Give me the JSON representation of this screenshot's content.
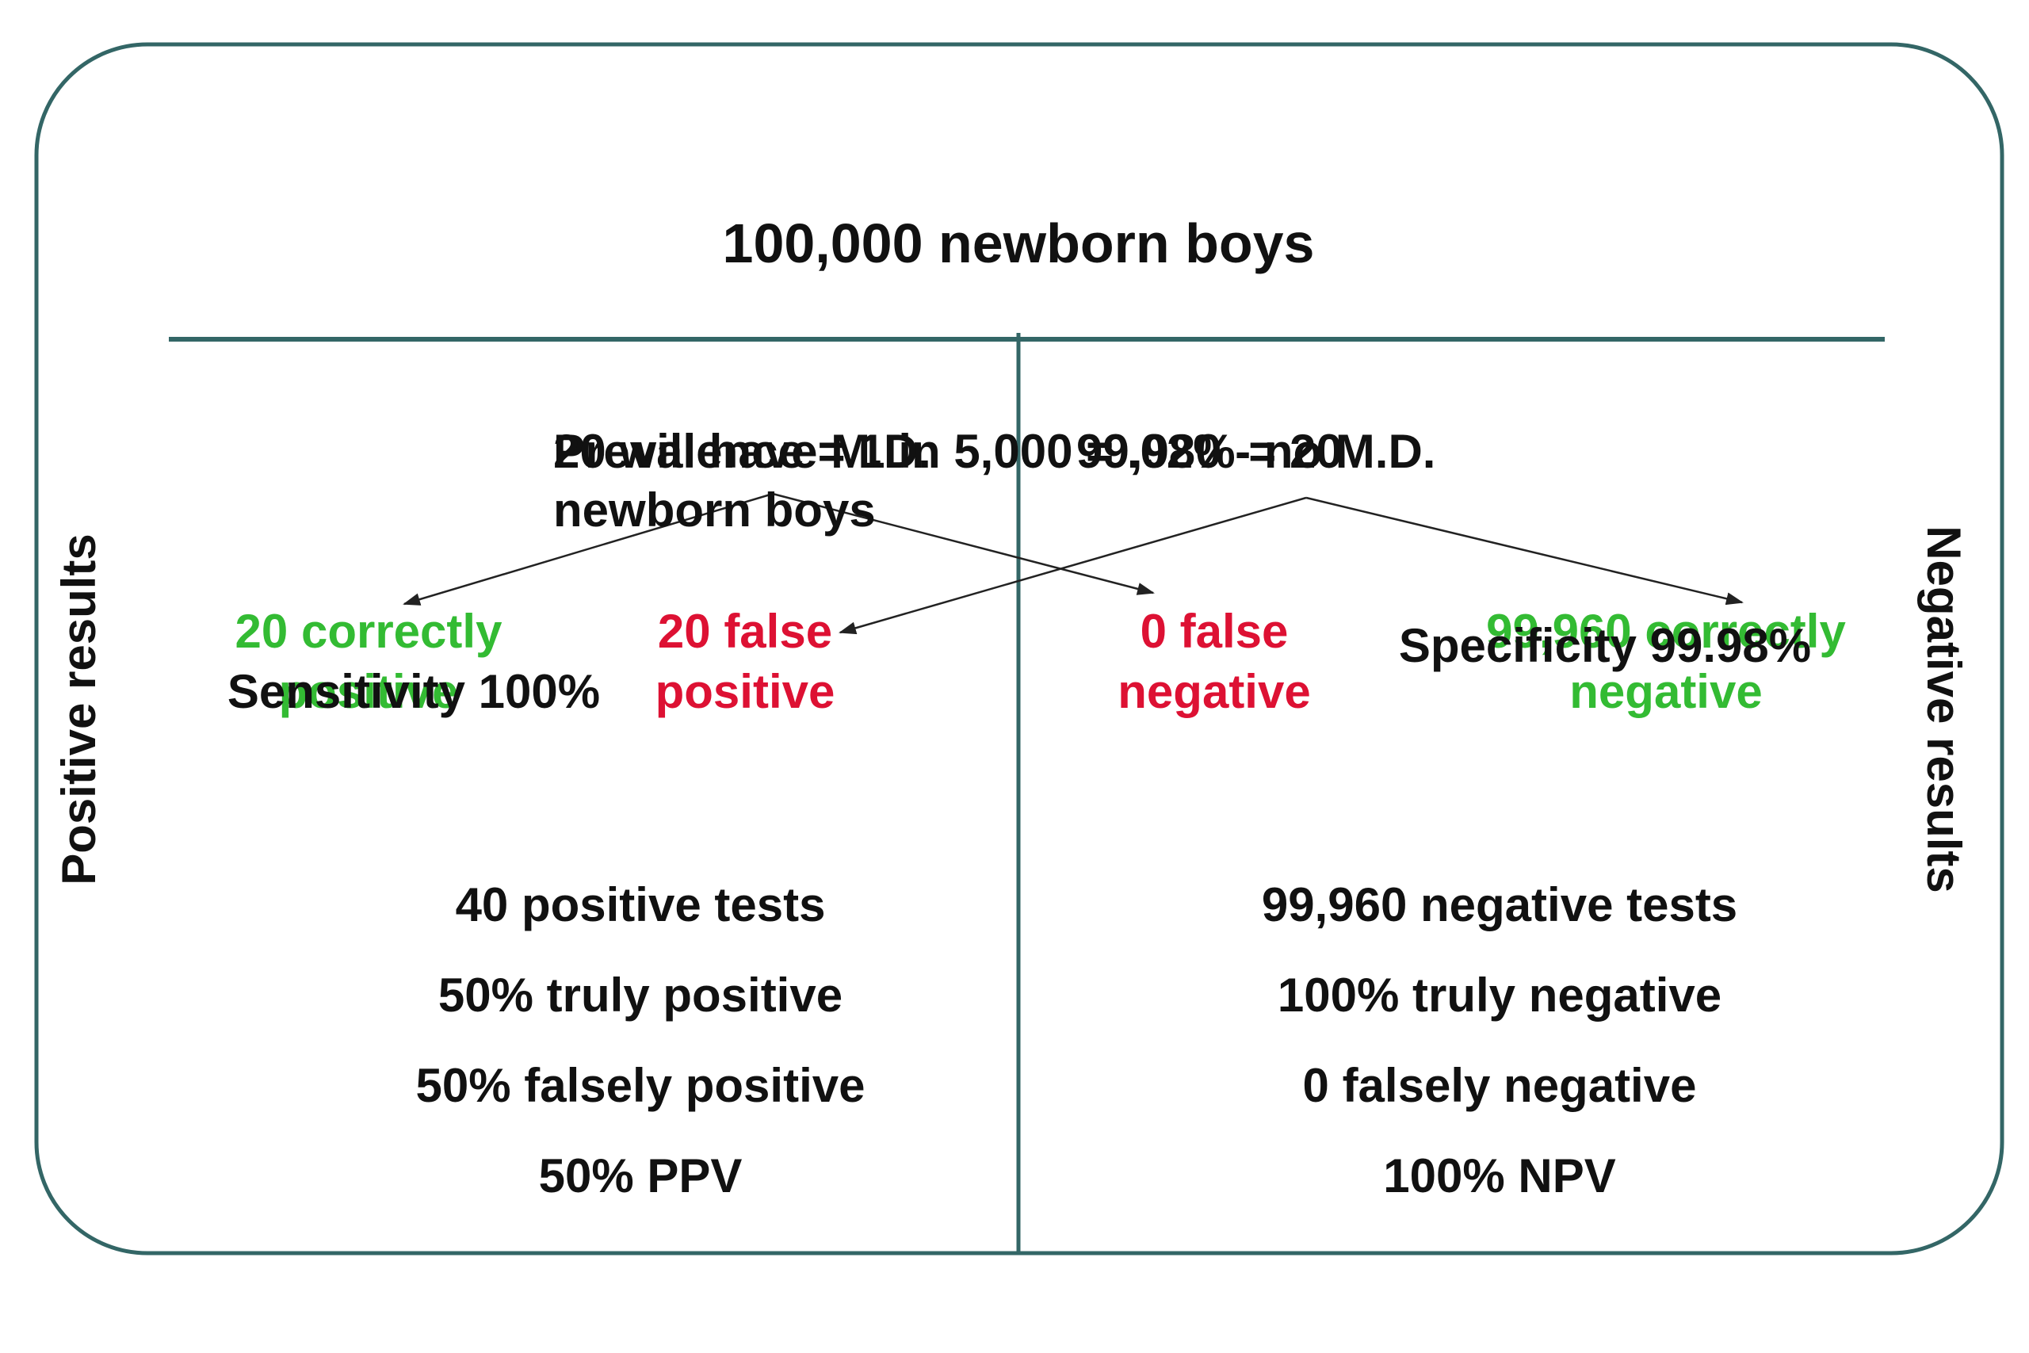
{
  "title": "100,000 newborn boys",
  "colors": {
    "frame": "#336666",
    "arrow": "#222222",
    "green": "#33BB33",
    "red": "#DD1133",
    "text": "#111111"
  },
  "side_labels": {
    "left": "Positive results",
    "right": "Negative results"
  },
  "overlapping_texts": {
    "prevalence_line1": "Prevalence = 1 in 5,000 = .02% = 20",
    "prevalence_line2": "newborn boys",
    "will_have": "20 will have M.D.",
    "will_not_have": "99,980 - no M.D."
  },
  "outcomes": {
    "true_positive": {
      "line1": "20 correctly",
      "line2": "positive"
    },
    "false_positive": {
      "line1": "20 false",
      "line2": "positive"
    },
    "false_negative": {
      "line1": "0 false",
      "line2": "negative"
    },
    "true_negative": {
      "line1": "99,960 correctly",
      "line2": "negative"
    }
  },
  "sensitivity": "Sensitivity 100%",
  "specificity": "Specificity 99.98%",
  "positive_stats": [
    "40 positive tests",
    "50% truly positive",
    "50% falsely positive",
    "50% PPV"
  ],
  "negative_stats": [
    "99,960 negative tests",
    "100% truly negative",
    "0 falsely negative",
    "100% NPV"
  ]
}
